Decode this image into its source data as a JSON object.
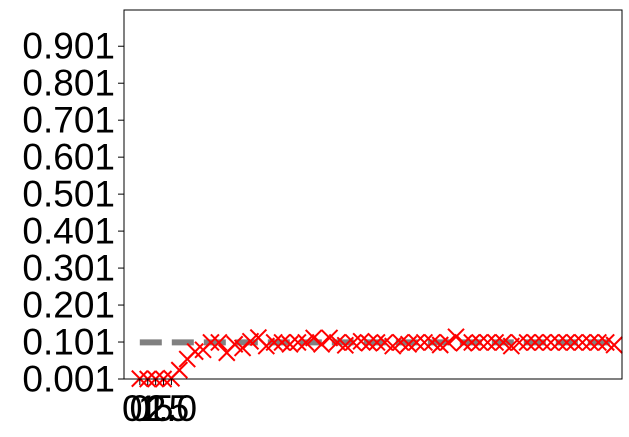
{
  "chart_data": {
    "type": "scatter",
    "title": "",
    "xlabel": "",
    "ylabel": "",
    "xlim": [
      -2,
      61
    ],
    "ylim": [
      0.001,
      0.999
    ],
    "grid": false,
    "yticks": [
      0.001,
      0.101,
      0.201,
      0.301,
      0.401,
      0.501,
      0.601,
      0.701,
      0.801,
      0.901
    ],
    "ytick_labels": [
      "0.001",
      "0.101",
      "0.201",
      "0.301",
      "0.401",
      "0.501",
      "0.601",
      "0.701",
      "0.801",
      "0.901"
    ],
    "xticks": [
      0,
      1,
      2,
      3,
      4
    ],
    "xtick_labels": [
      "0",
      "0.5",
      "1",
      "1.5",
      "2.0"
    ],
    "reference_line": {
      "y": 0.1,
      "x_range": [
        0,
        60
      ],
      "color": "#808080",
      "style": "dashed"
    },
    "series": [
      {
        "marker": "x",
        "color": "#ff0000",
        "x": [
          0,
          1,
          2,
          3,
          4,
          5,
          6,
          7,
          8,
          9,
          10,
          11,
          12,
          13,
          14,
          15,
          16,
          17,
          18,
          19,
          20,
          21,
          22,
          23,
          24,
          25,
          26,
          27,
          28,
          29,
          30,
          31,
          32,
          33,
          34,
          35,
          36,
          37,
          38,
          39,
          40,
          41,
          42,
          43,
          44,
          45,
          46,
          47,
          48,
          49,
          50,
          51,
          52,
          53,
          54,
          55,
          56,
          57,
          58,
          59,
          60
        ],
        "y": [
          0.002,
          0.001,
          0.001,
          0.001,
          0.003,
          0.025,
          0.055,
          0.075,
          0.08,
          0.1,
          0.1,
          0.072,
          0.095,
          0.085,
          0.103,
          0.113,
          0.09,
          0.1,
          0.1,
          0.095,
          0.1,
          0.1,
          0.112,
          0.095,
          0.112,
          0.1,
          0.092,
          0.1,
          0.103,
          0.098,
          0.1,
          0.1,
          0.09,
          0.1,
          0.095,
          0.1,
          0.1,
          0.1,
          0.093,
          0.1,
          0.115,
          0.098,
          0.1,
          0.1,
          0.1,
          0.1,
          0.1,
          0.09,
          0.1,
          0.1,
          0.1,
          0.1,
          0.1,
          0.1,
          0.1,
          0.1,
          0.1,
          0.1,
          0.1,
          0.1,
          0.093
        ]
      }
    ]
  }
}
